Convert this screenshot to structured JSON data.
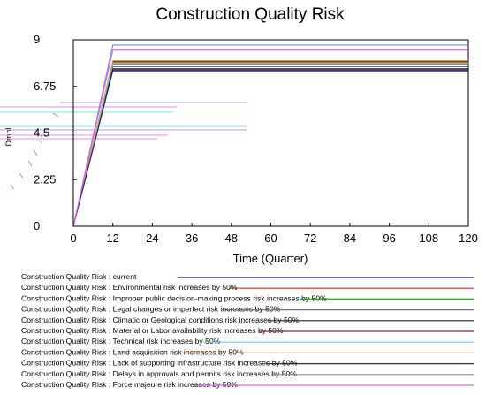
{
  "chart_data": {
    "type": "line",
    "title": "Construction Quality Risk",
    "xlabel": "Time (Quarter)",
    "ylabel": "Dmnl",
    "xlim": [
      0,
      120
    ],
    "ylim": [
      0,
      9
    ],
    "xticks": [
      0,
      12,
      24,
      36,
      48,
      60,
      72,
      84,
      96,
      108,
      120
    ],
    "yticks": [
      "0",
      "2.25",
      "4.5",
      "6.75",
      "9"
    ],
    "grid": false,
    "legend_position": "bottom",
    "series": [
      {
        "name": "Construction Quality Risk : current",
        "color": "#1a1aa6",
        "x": [
          0,
          12,
          120
        ],
        "y": [
          0,
          7.5,
          7.5
        ]
      },
      {
        "name": "Construction Quality Risk : Environmental risk increases by 50%",
        "color": "#c0392b",
        "x": [
          0,
          12,
          120
        ],
        "y": [
          0,
          7.8,
          7.8
        ]
      },
      {
        "name": "Construction Quality Risk : Improper public decision-making process risk increases by 50%",
        "color": "#2e9e2e",
        "x": [
          0,
          12,
          120
        ],
        "y": [
          0,
          7.7,
          7.7
        ]
      },
      {
        "name": "Construction Quality Risk : Legal changes or imperfect risk increases by 50%",
        "color": "#777777",
        "x": [
          0,
          12,
          120
        ],
        "y": [
          0,
          7.9,
          7.9
        ]
      },
      {
        "name": "Construction Quality Risk : Climatic or Geological conditions risk increases by 50%",
        "color": "#222222",
        "x": [
          0,
          12,
          120
        ],
        "y": [
          0,
          7.6,
          7.6
        ]
      },
      {
        "name": "Construction Quality Risk : Material or Labor availability risk increases by 50%",
        "color": "#8b2a2a",
        "x": [
          0,
          12,
          120
        ],
        "y": [
          0,
          7.95,
          7.95
        ]
      },
      {
        "name": "Construction Quality Risk : Technical risk increases by 50%",
        "color": "#55dddd",
        "x": [
          0,
          12,
          120
        ],
        "y": [
          0,
          7.85,
          7.85
        ]
      },
      {
        "name": "Construction Quality Risk : Land acquisition risk increases by 50%",
        "color": "#e8a040",
        "x": [
          0,
          12,
          120
        ],
        "y": [
          0,
          8.0,
          8.0
        ]
      },
      {
        "name": "Construction Quality Risk : Lack of supporting infrastructure risk increases by 50%",
        "color": "#1f2f6f",
        "x": [
          0,
          12,
          120
        ],
        "y": [
          0,
          7.55,
          7.55
        ]
      },
      {
        "name": "Construction Quality Risk : Delays in approvals and permits risk increases by 50%",
        "color": "#8080ee",
        "x": [
          0,
          12,
          120
        ],
        "y": [
          0,
          8.75,
          8.75
        ]
      },
      {
        "name": "Construction Quality Risk : Force majeure risk increases by 50%",
        "color": "#dd66dd",
        "x": [
          0,
          12,
          120
        ],
        "y": [
          0,
          8.5,
          8.5
        ]
      }
    ]
  }
}
